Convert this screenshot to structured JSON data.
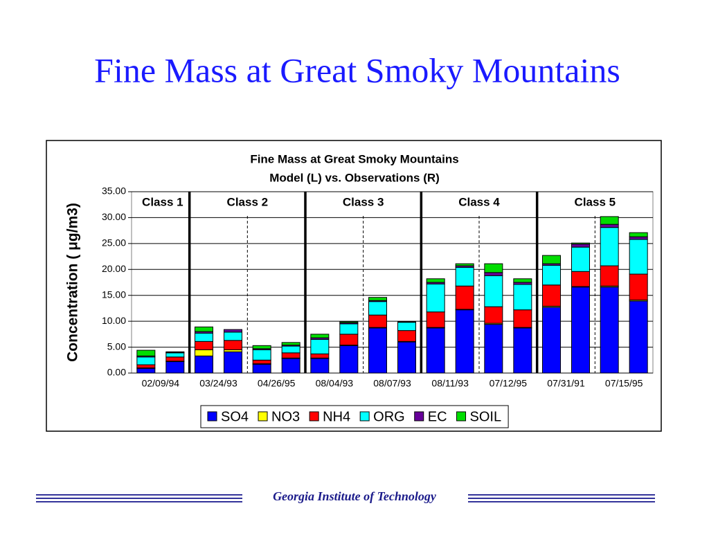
{
  "slide_title": "Fine Mass at Great Smoky Mountains",
  "footer": "Georgia Institute of Technology",
  "chart_data": {
    "type": "bar",
    "stacked": true,
    "title": "Fine Mass at Great Smoky Mountains",
    "subtitle": "Model (L) vs. Observations (R)",
    "ylabel": "Concentration ( μg/m3)",
    "categories": [
      "02/09/94",
      "03/24/93",
      "04/26/95",
      "08/04/93",
      "08/07/93",
      "08/11/93",
      "07/12/95",
      "07/31/91",
      "07/15/95"
    ],
    "classes": [
      "Class 1",
      "Class 2",
      "Class 3",
      "Class 4",
      "Class 5"
    ],
    "ylim": [
      0,
      35
    ],
    "yticks": [
      {
        "value": 0,
        "label": "0.00"
      },
      {
        "value": 5,
        "label": "5.00"
      },
      {
        "value": 10,
        "label": "10.00"
      },
      {
        "value": 15,
        "label": "15.00"
      },
      {
        "value": 20,
        "label": "20.00"
      },
      {
        "value": 25,
        "label": "25.00"
      },
      {
        "value": 30,
        "label": "30.00"
      },
      {
        "value": 35,
        "label": "35.00"
      }
    ],
    "series": [
      {
        "name": "SO4",
        "color": "#0000ff",
        "values": [
          [
            0.9,
            2.2
          ],
          [
            3.3,
            4.1
          ],
          [
            1.7,
            2.8
          ],
          [
            2.8,
            5.3
          ],
          [
            8.7,
            6.0
          ],
          [
            8.7,
            12.2
          ],
          [
            9.4,
            8.7
          ],
          [
            12.7,
            16.6
          ],
          [
            16.6,
            13.9
          ]
        ]
      },
      {
        "name": "NO3",
        "color": "#ffff00",
        "values": [
          [
            0.1,
            0.1
          ],
          [
            1.2,
            0.4
          ],
          [
            0.1,
            0.1
          ],
          [
            0.1,
            0.1
          ],
          [
            0.1,
            0.1
          ],
          [
            0.1,
            0.1
          ],
          [
            0.2,
            0.1
          ],
          [
            0.2,
            0.1
          ],
          [
            0.2,
            0.2
          ]
        ]
      },
      {
        "name": "NH4",
        "color": "#ff0000",
        "values": [
          [
            0.6,
            0.8
          ],
          [
            1.6,
            1.8
          ],
          [
            0.7,
            1.0
          ],
          [
            0.8,
            2.1
          ],
          [
            2.4,
            2.1
          ],
          [
            3.0,
            4.5
          ],
          [
            3.2,
            3.4
          ],
          [
            4.1,
            2.9
          ],
          [
            3.9,
            5.0
          ]
        ]
      },
      {
        "name": "ORG",
        "color": "#00ffff",
        "values": [
          [
            1.5,
            0.8
          ],
          [
            1.6,
            1.6
          ],
          [
            2.0,
            1.3
          ],
          [
            2.8,
            2.0
          ],
          [
            2.6,
            1.6
          ],
          [
            5.4,
            3.6
          ],
          [
            6.0,
            4.9
          ],
          [
            3.8,
            4.7
          ],
          [
            7.4,
            6.7
          ]
        ]
      },
      {
        "name": "EC",
        "color": "#660099",
        "values": [
          [
            0.2,
            0.1
          ],
          [
            0.3,
            0.5
          ],
          [
            0.2,
            0.2
          ],
          [
            0.3,
            0.2
          ],
          [
            0.2,
            0.1
          ],
          [
            0.3,
            0.3
          ],
          [
            0.6,
            0.4
          ],
          [
            0.3,
            0.6
          ],
          [
            0.6,
            0.5
          ]
        ]
      },
      {
        "name": "SOIL",
        "color": "#00dd00",
        "values": [
          [
            1.1,
            0.1
          ],
          [
            0.9,
            0
          ],
          [
            0.6,
            0.5
          ],
          [
            0.7,
            0.2
          ],
          [
            0.6,
            0
          ],
          [
            0.7,
            0.4
          ],
          [
            1.7,
            0.7
          ],
          [
            1.6,
            0.2
          ],
          [
            1.5,
            0.8
          ]
        ]
      }
    ]
  }
}
